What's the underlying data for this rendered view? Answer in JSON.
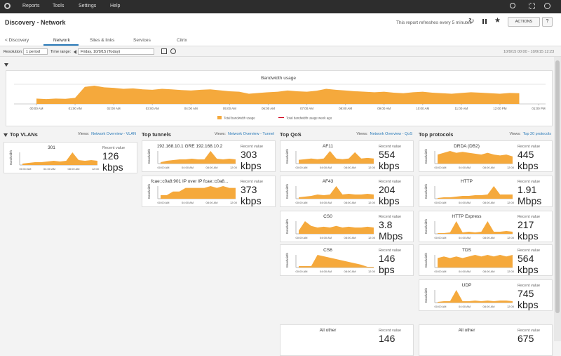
{
  "nav": [
    "Reports",
    "Tools",
    "Settings",
    "Help"
  ],
  "header": {
    "title": "Discovery - Network",
    "refresh": "This report refreshes every 5 minutes",
    "actions": "ACTIONS",
    "help": "?"
  },
  "tabs": [
    "< Discovery",
    "Network",
    "Sites & links",
    "Services",
    "Citrix"
  ],
  "toolbar": {
    "resolution_label": "Resolution:",
    "resolution": "1 period",
    "time_range_label": "Time range:",
    "date": "Friday, 10/9/15 (Today)",
    "range": "10/9/15 00:00 - 10/9/15 12:23"
  },
  "main_chart": {
    "type": "area",
    "title": "Bandwidth usage",
    "xticks": [
      "00:00 AM",
      "01:00 AM",
      "02:00 AM",
      "03:00 AM",
      "04:00 AM",
      "05:00 AM",
      "06:00 AM",
      "07:00 AM",
      "08:00 AM",
      "09:00 AM",
      "10:00 AM",
      "11:00 AM",
      "12:00 PM",
      "01:00 PM"
    ],
    "series": [
      {
        "name": "Total bandwidth usage",
        "color": "#f5a93c",
        "values": [
          0.22,
          0.2,
          0.22,
          0.21,
          0.25,
          0.7,
          0.75,
          0.68,
          0.66,
          0.62,
          0.64,
          0.6,
          0.58,
          0.62,
          0.6,
          0.57,
          0.55,
          0.58,
          0.6,
          0.56,
          0.52,
          0.5,
          0.42,
          0.45,
          0.48,
          0.5,
          0.55,
          0.52,
          0.5,
          0.54,
          0.62,
          0.58,
          0.55,
          0.52,
          0.5,
          0.48,
          0.5,
          0.46,
          0.44,
          0.48,
          0.5,
          0.46,
          0.44,
          0.42,
          0.45,
          0.48,
          0.46,
          0.44,
          0.42,
          0.45,
          0.44
        ]
      },
      {
        "name": "Total bandwidth usage week ago",
        "color": "#d0021b"
      }
    ]
  },
  "spark_ticks": [
    "00:00 AM",
    "04:00 AM",
    "08:00 AM",
    "12:00 PM"
  ],
  "axis_label": "Bandwidth",
  "recent_label": "Recent value",
  "views_label": "Views:",
  "sections": [
    {
      "title": "Top VLANs",
      "link": "Network Overview - VLAN",
      "cards": [
        {
          "name": "301",
          "value": "126",
          "unit": "kbps",
          "spark": [
            0.1,
            0.15,
            0.2,
            0.2,
            0.25,
            0.3,
            0.25,
            0.3,
            0.9,
            0.35,
            0.3,
            0.35,
            0.3
          ]
        }
      ]
    },
    {
      "title": "Top tunnels",
      "link": "Network Overview - Tunnel",
      "cards": [
        {
          "name": "192.168.10.1 GRE 192.168.10.2",
          "value": "303",
          "unit": "kbps",
          "spark": [
            0.1,
            0.2,
            0.25,
            0.3,
            0.3,
            0.35,
            0.3,
            0.3,
            0.9,
            0.35,
            0.3,
            0.35,
            0.3
          ]
        },
        {
          "name": "fcae::c0a8:901 IP over IP fcae::c0a8...",
          "value": "373",
          "unit": "kbps",
          "spark": [
            0.1,
            0.1,
            0.2,
            0.2,
            0.3,
            0.3,
            0.3,
            0.3,
            0.35,
            0.3,
            0.35,
            0.3,
            0.3
          ]
        }
      ]
    },
    {
      "title": "Top QoS",
      "link": "Network Overview - QoS",
      "cards": [
        {
          "name": "AF11",
          "value": "554",
          "unit": "kbps",
          "spark": [
            0.3,
            0.35,
            0.4,
            0.35,
            0.4,
            1,
            0.4,
            0.35,
            0.4,
            0.9,
            0.4,
            0.45,
            0.4
          ]
        },
        {
          "name": "AF43",
          "value": "204",
          "unit": "kbps",
          "spark": [
            0.1,
            0.15,
            0.2,
            0.3,
            0.25,
            0.3,
            0.9,
            0.3,
            0.35,
            0.3,
            0.3,
            0.35,
            0.3
          ]
        },
        {
          "name": "CS0",
          "value": "3.8",
          "unit": "Mbps",
          "spark": [
            0.2,
            0.8,
            0.5,
            0.4,
            0.45,
            0.4,
            0.5,
            0.4,
            0.45,
            0.4,
            0.4,
            0.45,
            0.4
          ]
        },
        {
          "name": "CS6",
          "value": "146",
          "unit": "bps",
          "spark": [
            0.1,
            0.1,
            0.1,
            0.9,
            0.8,
            0.7,
            0.6,
            0.5,
            0.4,
            0.3,
            0.2,
            0.05,
            0.05
          ]
        }
      ],
      "other": {
        "name": "All other",
        "value": "146"
      }
    },
    {
      "title": "Top protocols",
      "link": "Top 20 protocols",
      "cards": [
        {
          "name": "DRDA (DB2)",
          "value": "445",
          "unit": "kbps",
          "spark": [
            0.5,
            0.6,
            0.7,
            0.6,
            0.65,
            0.6,
            0.55,
            0.5,
            0.6,
            0.5,
            0.45,
            0.5,
            0.4
          ]
        },
        {
          "name": "HTTP",
          "value": "1.91",
          "unit": "Mbps",
          "spark": [
            0.05,
            0.1,
            0.1,
            0.15,
            0.2,
            0.2,
            0.25,
            0.25,
            0.3,
            0.9,
            0.3,
            0.3,
            0.3
          ]
        },
        {
          "name": "HTTP Express",
          "value": "217",
          "unit": "kbps",
          "spark": [
            0.05,
            0.05,
            0.1,
            0.9,
            0.1,
            0.15,
            0.1,
            0.15,
            0.9,
            0.15,
            0.15,
            0.2,
            0.15
          ]
        },
        {
          "name": "TDS",
          "value": "564",
          "unit": "kbps",
          "spark": [
            0.3,
            0.35,
            0.3,
            0.35,
            0.3,
            0.35,
            0.4,
            0.35,
            0.4,
            0.35,
            0.4,
            0.35,
            0.4
          ]
        },
        {
          "name": "UDP",
          "value": "745",
          "unit": "kbps",
          "spark": [
            0.05,
            0.1,
            0.1,
            0.9,
            0.1,
            0.1,
            0.15,
            0.1,
            0.15,
            0.1,
            0.15,
            0.15,
            0.1
          ]
        }
      ],
      "other": {
        "name": "All other",
        "value": "675"
      }
    }
  ]
}
